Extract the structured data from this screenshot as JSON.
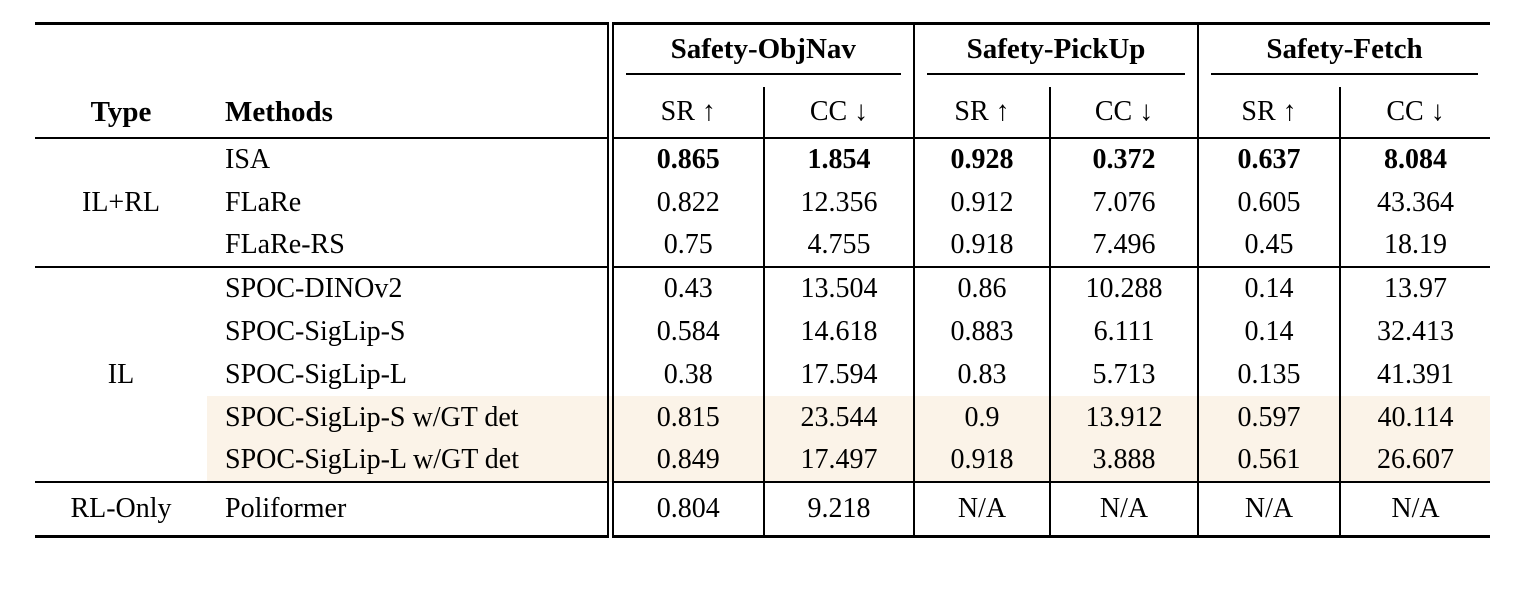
{
  "table": {
    "col_headers": {
      "type": "Type",
      "methods": "Methods"
    },
    "groups": [
      {
        "label": "Safety-ObjNav"
      },
      {
        "label": "Safety-PickUp"
      },
      {
        "label": "Safety-Fetch"
      }
    ],
    "metrics": [
      "SR ↑",
      "CC ↓",
      "SR ↑",
      "CC ↓",
      "SR ↑",
      "CC ↓"
    ],
    "highlight_color": "#FBF3E8",
    "sections": [
      {
        "type": "IL+RL",
        "rows": [
          {
            "method": "ISA",
            "values": [
              "0.865",
              "1.854",
              "0.928",
              "0.372",
              "0.637",
              "8.084"
            ]
          },
          {
            "method": "FLaRe",
            "values": [
              "0.822",
              "12.356",
              "0.912",
              "7.076",
              "0.605",
              "43.364"
            ]
          },
          {
            "method": "FLaRe-RS",
            "values": [
              "0.75",
              "4.755",
              "0.918",
              "7.496",
              "0.45",
              "18.19"
            ]
          }
        ]
      },
      {
        "type": "IL",
        "rows": [
          {
            "method": "SPOC-DINOv2",
            "values": [
              "0.43",
              "13.504",
              "0.86",
              "10.288",
              "0.14",
              "13.97"
            ]
          },
          {
            "method": "SPOC-SigLip-S",
            "values": [
              "0.584",
              "14.618",
              "0.883",
              "6.111",
              "0.14",
              "32.413"
            ]
          },
          {
            "method": "SPOC-SigLip-L",
            "values": [
              "0.38",
              "17.594",
              "0.83",
              "5.713",
              "0.135",
              "41.391"
            ]
          },
          {
            "method": "SPOC-SigLip-S w/GT det",
            "values": [
              "0.815",
              "23.544",
              "0.9",
              "13.912",
              "0.597",
              "40.114"
            ]
          },
          {
            "method": "SPOC-SigLip-L w/GT det",
            "values": [
              "0.849",
              "17.497",
              "0.918",
              "3.888",
              "0.561",
              "26.607"
            ]
          }
        ]
      },
      {
        "type": "RL-Only",
        "rows": [
          {
            "method": "Poliformer",
            "values": [
              "0.804",
              "9.218",
              "N/A",
              "N/A",
              "N/A",
              "N/A"
            ]
          }
        ]
      }
    ]
  }
}
